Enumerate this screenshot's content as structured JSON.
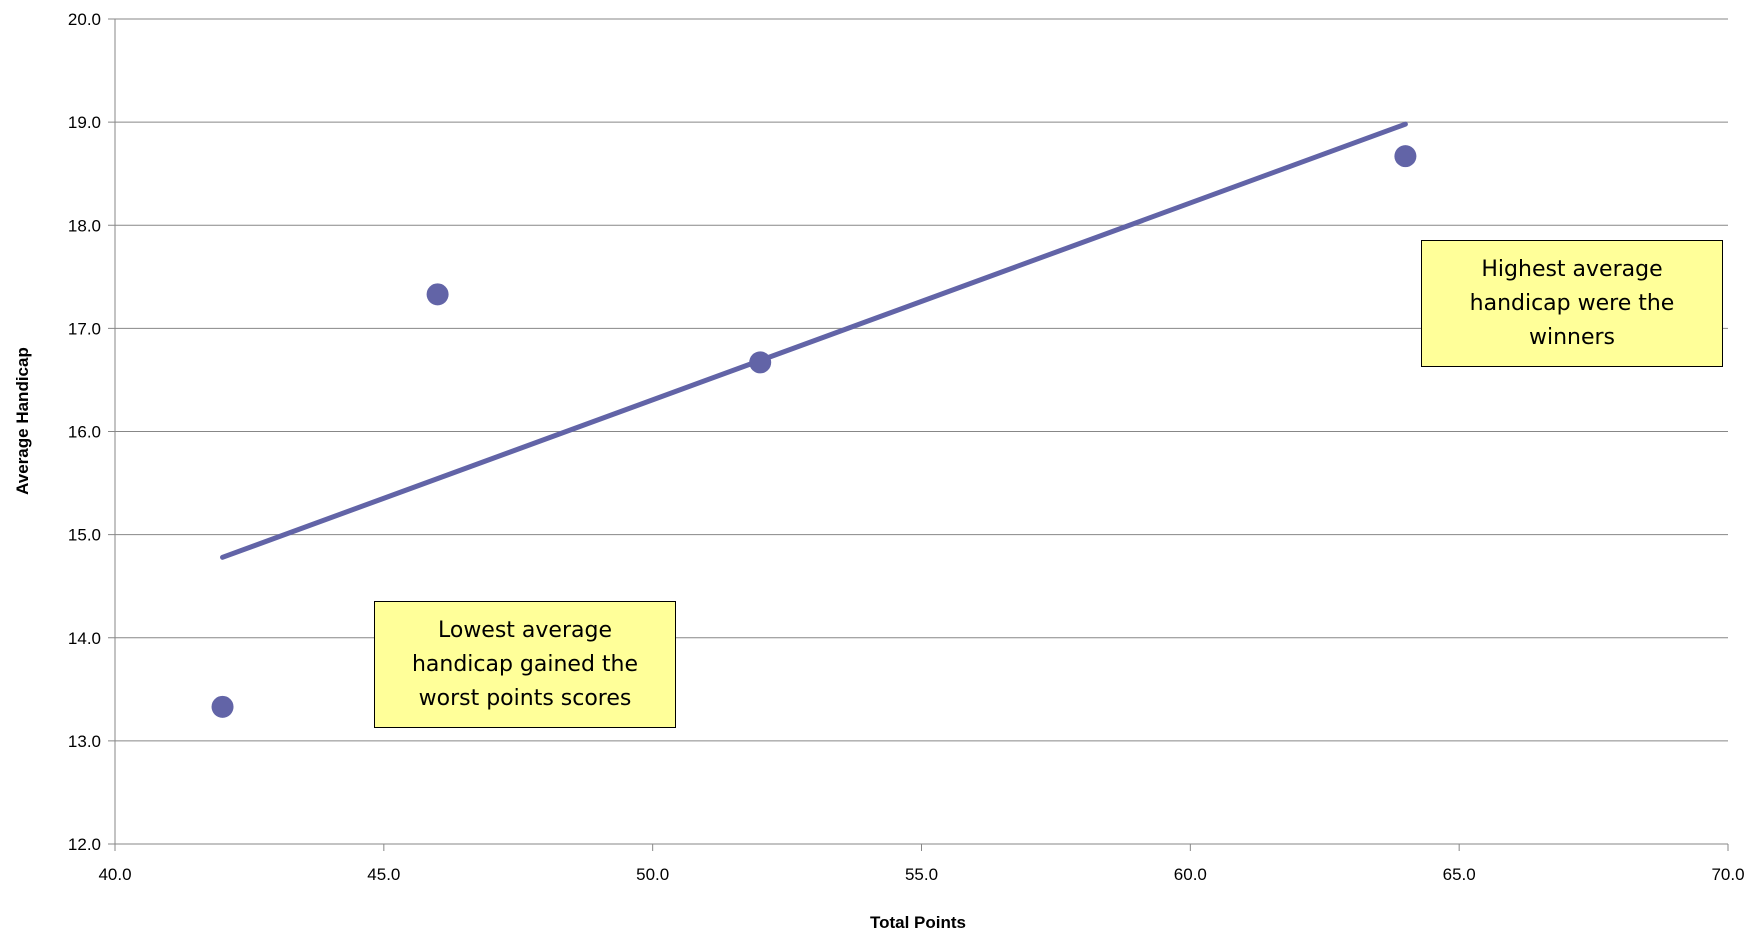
{
  "chart_data": {
    "type": "scatter",
    "title": "",
    "xlabel": "Total Points",
    "ylabel": "Average Handicap",
    "xlim": [
      40.0,
      70.0
    ],
    "ylim": [
      12.0,
      20.0
    ],
    "x_ticks": [
      "40.0",
      "45.0",
      "50.0",
      "55.0",
      "60.0",
      "65.0",
      "70.0"
    ],
    "y_ticks": [
      "12.0",
      "13.0",
      "14.0",
      "15.0",
      "16.0",
      "17.0",
      "18.0",
      "19.0",
      "20.0"
    ],
    "grid": "horizontal",
    "legend": "none",
    "series": [
      {
        "x": [
          42,
          46,
          52,
          64
        ],
        "y": [
          13.33,
          17.33,
          16.67,
          18.67
        ],
        "color": "#6264a7"
      }
    ],
    "trendline": {
      "type": "linear",
      "x": [
        42,
        64
      ],
      "y": [
        14.78,
        18.98
      ],
      "color": "#6264a7"
    },
    "annotations": [
      "Lowest average handicap gained the worst points scores",
      "Highest average handicap were the winners"
    ]
  }
}
